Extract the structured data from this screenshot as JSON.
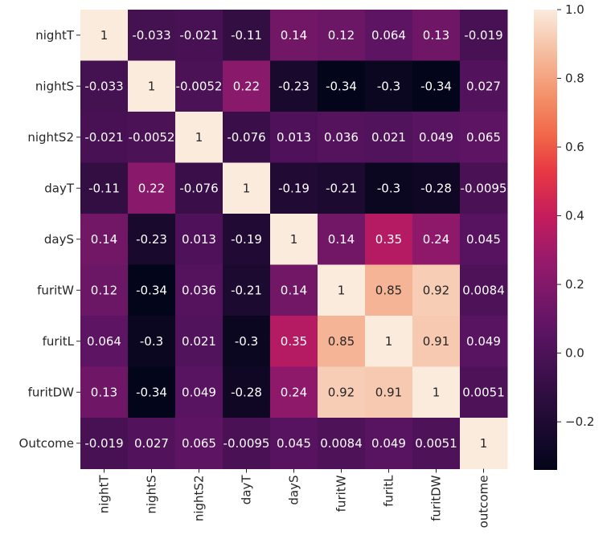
{
  "chart_data": {
    "type": "heatmap",
    "title": "",
    "row_labels": [
      "nightT",
      "nightS",
      "nightS2",
      "dayT",
      "dayS",
      "furitW",
      "furitL",
      "furitDW",
      "Outcome"
    ],
    "col_labels": [
      "nightT",
      "nightS",
      "nightS2",
      "dayT",
      "dayS",
      "furitW",
      "furitL",
      "furitDW",
      "outcome"
    ],
    "cell_labels": [
      [
        "1",
        "-0.033",
        "-0.021",
        "-0.11",
        "0.14",
        "0.12",
        "0.064",
        "0.13",
        "-0.019"
      ],
      [
        "-0.033",
        "1",
        "-0.0052",
        "0.22",
        "-0.23",
        "-0.34",
        "-0.3",
        "-0.34",
        "0.027"
      ],
      [
        "-0.021",
        "-0.0052",
        "1",
        "-0.076",
        "0.013",
        "0.036",
        "0.021",
        "0.049",
        "0.065"
      ],
      [
        "-0.11",
        "0.22",
        "-0.076",
        "1",
        "-0.19",
        "-0.21",
        "-0.3",
        "-0.28",
        "-0.0095"
      ],
      [
        "0.14",
        "-0.23",
        "0.013",
        "-0.19",
        "1",
        "0.14",
        "0.35",
        "0.24",
        "0.045"
      ],
      [
        "0.12",
        "-0.34",
        "0.036",
        "-0.21",
        "0.14",
        "1",
        "0.85",
        "0.92",
        "0.0084"
      ],
      [
        "0.064",
        "-0.3",
        "0.021",
        "-0.3",
        "0.35",
        "0.85",
        "1",
        "0.91",
        "0.049"
      ],
      [
        "0.13",
        "-0.34",
        "0.049",
        "-0.28",
        "0.24",
        "0.92",
        "0.91",
        "1",
        "0.0051"
      ],
      [
        "-0.019",
        "0.027",
        "0.065",
        "-0.0095",
        "0.045",
        "0.0084",
        "0.049",
        "0.0051",
        "1"
      ]
    ],
    "values": [
      [
        1,
        -0.033,
        -0.021,
        -0.11,
        0.14,
        0.12,
        0.064,
        0.13,
        -0.019
      ],
      [
        -0.033,
        1,
        -0.0052,
        0.22,
        -0.23,
        -0.34,
        -0.3,
        -0.34,
        0.027
      ],
      [
        -0.021,
        -0.0052,
        1,
        -0.076,
        0.013,
        0.036,
        0.021,
        0.049,
        0.065
      ],
      [
        -0.11,
        0.22,
        -0.076,
        1,
        -0.19,
        -0.21,
        -0.3,
        -0.28,
        -0.0095
      ],
      [
        0.14,
        -0.23,
        0.013,
        -0.19,
        1,
        0.14,
        0.35,
        0.24,
        0.045
      ],
      [
        0.12,
        -0.34,
        0.036,
        -0.21,
        0.14,
        1,
        0.85,
        0.92,
        0.0084
      ],
      [
        0.064,
        -0.3,
        0.021,
        -0.3,
        0.35,
        0.85,
        1,
        0.91,
        0.049
      ],
      [
        0.13,
        -0.34,
        0.049,
        -0.28,
        0.24,
        0.92,
        0.91,
        1,
        0.0051
      ],
      [
        -0.019,
        0.027,
        0.065,
        -0.0095,
        0.045,
        0.0084,
        0.049,
        0.0051,
        1
      ]
    ],
    "colormap": "rocket",
    "colorbar": {
      "range": [
        -0.34,
        1.0
      ],
      "ticks": [
        -0.2,
        0.0,
        0.2,
        0.4,
        0.6,
        0.8,
        1.0
      ],
      "tick_labels": [
        "−0.2",
        "0.0",
        "0.2",
        "0.4",
        "0.6",
        "0.8",
        "1.0"
      ]
    },
    "colors": {
      "stops": [
        [
          0.0,
          "#03051a"
        ],
        [
          0.15,
          "#2b0d3d"
        ],
        [
          0.3,
          "#5b1463"
        ],
        [
          0.45,
          "#951a6c"
        ],
        [
          0.55,
          "#c41c5c"
        ],
        [
          0.65,
          "#e83944"
        ],
        [
          0.72,
          "#f16347"
        ],
        [
          0.82,
          "#f3956d"
        ],
        [
          0.92,
          "#f6c3a8"
        ],
        [
          1.0,
          "#faebdd"
        ]
      ],
      "text_light": "#ffffff",
      "text_dark": "#262626"
    }
  }
}
